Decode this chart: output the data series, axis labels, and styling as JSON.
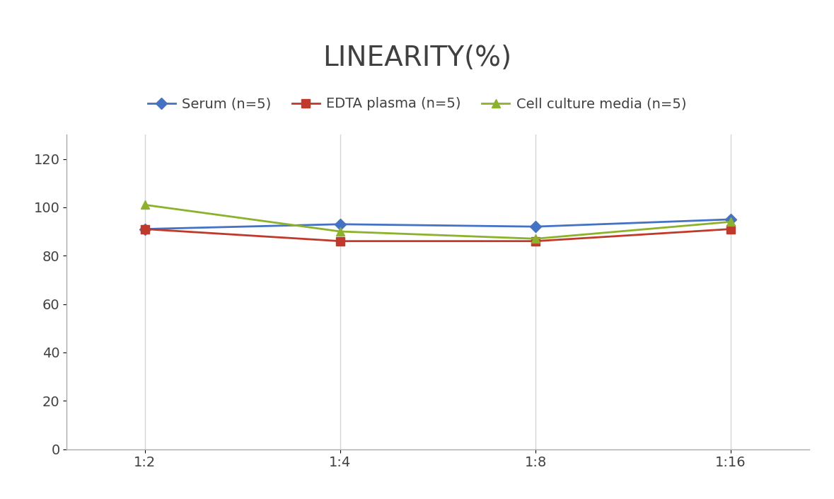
{
  "title": "LINEARITY(%)",
  "x_labels": [
    "1:2",
    "1:4",
    "1:8",
    "1:16"
  ],
  "series": [
    {
      "label": "Serum (n=5)",
      "values": [
        91,
        93,
        92,
        95
      ],
      "color": "#4472C4",
      "marker": "D",
      "markersize": 8
    },
    {
      "label": "EDTA plasma (n=5)",
      "values": [
        91,
        86,
        86,
        91
      ],
      "color": "#C0392B",
      "marker": "s",
      "markersize": 8
    },
    {
      "label": "Cell culture media (n=5)",
      "values": [
        101,
        90,
        87,
        94
      ],
      "color": "#8CB22C",
      "marker": "^",
      "markersize": 9
    }
  ],
  "ylim": [
    0,
    130
  ],
  "yticks": [
    0,
    20,
    40,
    60,
    80,
    100,
    120
  ],
  "title_fontsize": 28,
  "legend_fontsize": 14,
  "tick_fontsize": 14,
  "title_color": "#404040",
  "background_color": "#ffffff",
  "grid_color": "#d5d5d5"
}
